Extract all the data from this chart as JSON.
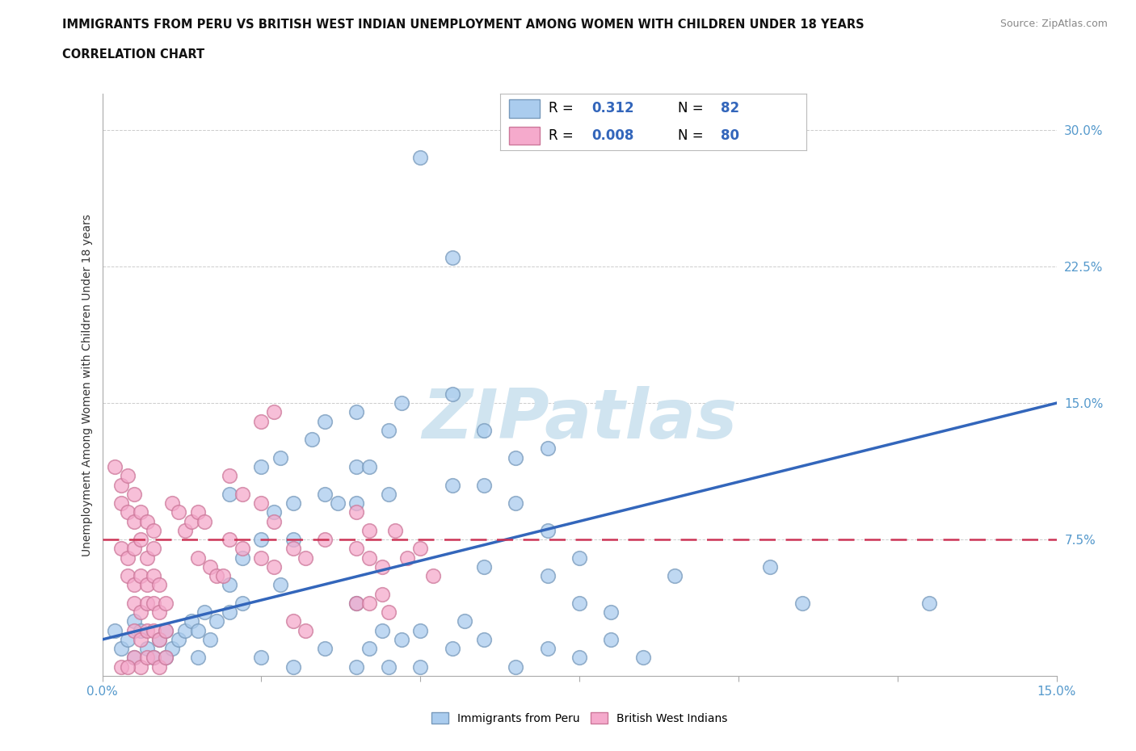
{
  "title_line1": "IMMIGRANTS FROM PERU VS BRITISH WEST INDIAN UNEMPLOYMENT AMONG WOMEN WITH CHILDREN UNDER 18 YEARS",
  "title_line2": "CORRELATION CHART",
  "source_text": "Source: ZipAtlas.com",
  "ylabel": "Unemployment Among Women with Children Under 18 years",
  "xlim": [
    0.0,
    0.15
  ],
  "ylim": [
    -0.01,
    0.32
  ],
  "plot_ylim": [
    0.0,
    0.32
  ],
  "xticks": [
    0.0,
    0.025,
    0.05,
    0.075,
    0.1,
    0.125,
    0.15
  ],
  "yticks": [
    0.0,
    0.075,
    0.15,
    0.225,
    0.3
  ],
  "ytick_labels": [
    "",
    "7.5%",
    "15.0%",
    "22.5%",
    "30.0%"
  ],
  "xtick_labels": [
    "0.0%",
    "",
    "",
    "",
    "",
    "",
    "15.0%"
  ],
  "peru_color": "#aaccee",
  "peru_edge_color": "#7799bb",
  "bwi_color": "#f5aacc",
  "bwi_edge_color": "#cc7799",
  "trend_peru_color": "#3366bb",
  "trend_bwi_color": "#cc3355",
  "trend_peru_x0": 0.0,
  "trend_peru_y0": 0.02,
  "trend_peru_x1": 0.15,
  "trend_peru_y1": 0.15,
  "trend_bwi_x0": 0.0,
  "trend_bwi_y0": 0.075,
  "trend_bwi_x1": 0.15,
  "trend_bwi_y1": 0.075,
  "watermark": "ZIPatlas",
  "watermark_color": "#d0e4f0",
  "legend_R_color": "#3366bb",
  "tick_color": "#5599cc",
  "peru_scatter": [
    [
      0.002,
      0.025
    ],
    [
      0.003,
      0.015
    ],
    [
      0.004,
      0.02
    ],
    [
      0.005,
      0.03
    ],
    [
      0.005,
      0.01
    ],
    [
      0.006,
      0.025
    ],
    [
      0.007,
      0.015
    ],
    [
      0.008,
      0.01
    ],
    [
      0.009,
      0.02
    ],
    [
      0.01,
      0.025
    ],
    [
      0.01,
      0.01
    ],
    [
      0.011,
      0.015
    ],
    [
      0.012,
      0.02
    ],
    [
      0.013,
      0.025
    ],
    [
      0.014,
      0.03
    ],
    [
      0.015,
      0.025
    ],
    [
      0.015,
      0.01
    ],
    [
      0.016,
      0.035
    ],
    [
      0.017,
      0.02
    ],
    [
      0.018,
      0.03
    ],
    [
      0.02,
      0.05
    ],
    [
      0.02,
      0.035
    ],
    [
      0.02,
      0.1
    ],
    [
      0.022,
      0.065
    ],
    [
      0.022,
      0.04
    ],
    [
      0.025,
      0.075
    ],
    [
      0.025,
      0.115
    ],
    [
      0.027,
      0.09
    ],
    [
      0.028,
      0.05
    ],
    [
      0.028,
      0.12
    ],
    [
      0.03,
      0.095
    ],
    [
      0.03,
      0.075
    ],
    [
      0.033,
      0.13
    ],
    [
      0.035,
      0.1
    ],
    [
      0.035,
      0.14
    ],
    [
      0.037,
      0.095
    ],
    [
      0.04,
      0.115
    ],
    [
      0.04,
      0.095
    ],
    [
      0.04,
      0.145
    ],
    [
      0.042,
      0.115
    ],
    [
      0.045,
      0.135
    ],
    [
      0.045,
      0.1
    ],
    [
      0.047,
      0.15
    ],
    [
      0.05,
      0.285
    ],
    [
      0.055,
      0.23
    ],
    [
      0.055,
      0.155
    ],
    [
      0.055,
      0.105
    ],
    [
      0.06,
      0.135
    ],
    [
      0.06,
      0.105
    ],
    [
      0.065,
      0.12
    ],
    [
      0.065,
      0.095
    ],
    [
      0.07,
      0.125
    ],
    [
      0.07,
      0.08
    ],
    [
      0.075,
      0.065
    ],
    [
      0.075,
      0.04
    ],
    [
      0.08,
      0.035
    ],
    [
      0.09,
      0.055
    ],
    [
      0.105,
      0.06
    ],
    [
      0.11,
      0.04
    ],
    [
      0.13,
      0.04
    ],
    [
      0.025,
      0.01
    ],
    [
      0.03,
      0.005
    ],
    [
      0.035,
      0.015
    ],
    [
      0.04,
      0.005
    ],
    [
      0.042,
      0.015
    ],
    [
      0.044,
      0.025
    ],
    [
      0.045,
      0.005
    ],
    [
      0.047,
      0.02
    ],
    [
      0.05,
      0.025
    ],
    [
      0.05,
      0.005
    ],
    [
      0.055,
      0.015
    ],
    [
      0.057,
      0.03
    ],
    [
      0.06,
      0.02
    ],
    [
      0.065,
      0.005
    ],
    [
      0.07,
      0.015
    ],
    [
      0.075,
      0.01
    ],
    [
      0.08,
      0.02
    ],
    [
      0.085,
      0.01
    ],
    [
      0.04,
      0.04
    ],
    [
      0.06,
      0.06
    ],
    [
      0.07,
      0.055
    ]
  ],
  "bwi_scatter": [
    [
      0.002,
      0.115
    ],
    [
      0.003,
      0.105
    ],
    [
      0.004,
      0.11
    ],
    [
      0.005,
      0.1
    ],
    [
      0.003,
      0.095
    ],
    [
      0.004,
      0.09
    ],
    [
      0.005,
      0.085
    ],
    [
      0.006,
      0.09
    ],
    [
      0.007,
      0.085
    ],
    [
      0.008,
      0.08
    ],
    [
      0.003,
      0.07
    ],
    [
      0.004,
      0.065
    ],
    [
      0.005,
      0.07
    ],
    [
      0.006,
      0.075
    ],
    [
      0.007,
      0.065
    ],
    [
      0.008,
      0.07
    ],
    [
      0.004,
      0.055
    ],
    [
      0.005,
      0.05
    ],
    [
      0.006,
      0.055
    ],
    [
      0.007,
      0.05
    ],
    [
      0.008,
      0.055
    ],
    [
      0.009,
      0.05
    ],
    [
      0.005,
      0.04
    ],
    [
      0.006,
      0.035
    ],
    [
      0.007,
      0.04
    ],
    [
      0.008,
      0.04
    ],
    [
      0.009,
      0.035
    ],
    [
      0.01,
      0.04
    ],
    [
      0.005,
      0.025
    ],
    [
      0.006,
      0.02
    ],
    [
      0.007,
      0.025
    ],
    [
      0.008,
      0.025
    ],
    [
      0.009,
      0.02
    ],
    [
      0.01,
      0.025
    ],
    [
      0.005,
      0.01
    ],
    [
      0.006,
      0.005
    ],
    [
      0.007,
      0.01
    ],
    [
      0.008,
      0.01
    ],
    [
      0.009,
      0.005
    ],
    [
      0.01,
      0.01
    ],
    [
      0.003,
      0.005
    ],
    [
      0.004,
      0.005
    ],
    [
      0.011,
      0.095
    ],
    [
      0.012,
      0.09
    ],
    [
      0.013,
      0.08
    ],
    [
      0.014,
      0.085
    ],
    [
      0.015,
      0.09
    ],
    [
      0.016,
      0.085
    ],
    [
      0.02,
      0.11
    ],
    [
      0.022,
      0.1
    ],
    [
      0.02,
      0.075
    ],
    [
      0.022,
      0.07
    ],
    [
      0.015,
      0.065
    ],
    [
      0.017,
      0.06
    ],
    [
      0.018,
      0.055
    ],
    [
      0.019,
      0.055
    ],
    [
      0.025,
      0.095
    ],
    [
      0.027,
      0.085
    ],
    [
      0.025,
      0.065
    ],
    [
      0.027,
      0.06
    ],
    [
      0.03,
      0.07
    ],
    [
      0.032,
      0.065
    ],
    [
      0.035,
      0.075
    ],
    [
      0.04,
      0.09
    ],
    [
      0.04,
      0.07
    ],
    [
      0.042,
      0.065
    ],
    [
      0.042,
      0.08
    ],
    [
      0.044,
      0.06
    ],
    [
      0.046,
      0.08
    ],
    [
      0.048,
      0.065
    ],
    [
      0.04,
      0.04
    ],
    [
      0.042,
      0.04
    ],
    [
      0.044,
      0.045
    ],
    [
      0.045,
      0.035
    ],
    [
      0.05,
      0.07
    ],
    [
      0.052,
      0.055
    ],
    [
      0.025,
      0.14
    ],
    [
      0.027,
      0.145
    ],
    [
      0.03,
      0.03
    ],
    [
      0.032,
      0.025
    ]
  ]
}
